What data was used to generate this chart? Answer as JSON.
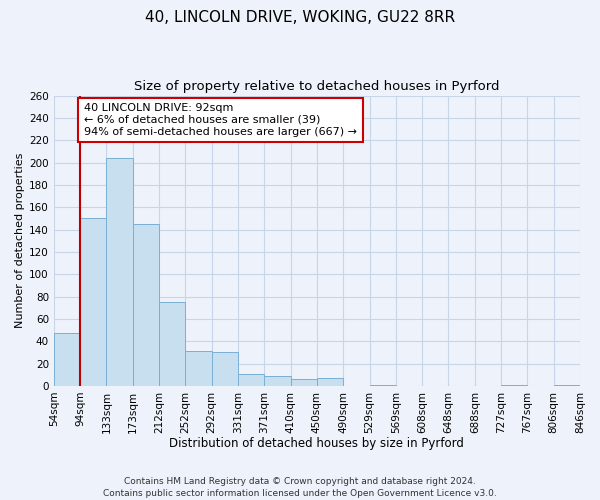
{
  "title": "40, LINCOLN DRIVE, WOKING, GU22 8RR",
  "subtitle": "Size of property relative to detached houses in Pyrford",
  "bar_values": [
    47,
    150,
    204,
    145,
    75,
    31,
    30,
    11,
    9,
    6,
    7,
    0,
    1,
    0,
    0,
    0,
    0,
    1,
    0,
    1
  ],
  "bin_labels": [
    "54sqm",
    "94sqm",
    "133sqm",
    "173sqm",
    "212sqm",
    "252sqm",
    "292sqm",
    "331sqm",
    "371sqm",
    "410sqm",
    "450sqm",
    "490sqm",
    "529sqm",
    "569sqm",
    "608sqm",
    "648sqm",
    "688sqm",
    "727sqm",
    "767sqm",
    "806sqm",
    "846sqm"
  ],
  "bar_color": "#c8dff0",
  "bar_edge_color": "#7aafd4",
  "grid_color": "#c8d4e8",
  "background_color": "#eef2fb",
  "vline_x": 1,
  "vline_color": "#bb0000",
  "annotation_text": "40 LINCOLN DRIVE: 92sqm\n← 6% of detached houses are smaller (39)\n94% of semi-detached houses are larger (667) →",
  "annotation_box_color": "#ffffff",
  "annotation_box_edge": "#cc0000",
  "xlabel": "Distribution of detached houses by size in Pyrford",
  "ylabel": "Number of detached properties",
  "ylim": [
    0,
    260
  ],
  "yticks": [
    0,
    20,
    40,
    60,
    80,
    100,
    120,
    140,
    160,
    180,
    200,
    220,
    240,
    260
  ],
  "footnote": "Contains HM Land Registry data © Crown copyright and database right 2024.\nContains public sector information licensed under the Open Government Licence v3.0.",
  "title_fontsize": 11,
  "subtitle_fontsize": 9.5,
  "xlabel_fontsize": 8.5,
  "ylabel_fontsize": 8,
  "tick_fontsize": 7.5,
  "annotation_fontsize": 8,
  "footnote_fontsize": 6.5
}
